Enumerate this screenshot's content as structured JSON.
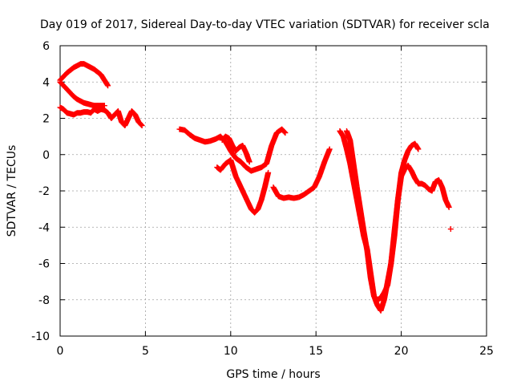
{
  "chart_data": {
    "type": "scatter",
    "title": "Day 019 of 2017, Sidereal Day-to-day VTEC variation (SDTVAR) for receiver scla",
    "xlabel": "GPS time / hours",
    "ylabel": "SDTVAR / TECUs",
    "xlim": [
      0,
      25
    ],
    "ylim": [
      -10,
      6
    ],
    "xticks": [
      0,
      5,
      10,
      15,
      20,
      25
    ],
    "yticks": [
      -10,
      -8,
      -6,
      -4,
      -2,
      0,
      2,
      4,
      6
    ],
    "grid": true,
    "marker": "plus",
    "color": "#ff0000",
    "series": [
      {
        "x": [
          0.0,
          0.2,
          0.4,
          0.6,
          0.8,
          1.0,
          1.2,
          1.4,
          1.6,
          1.8,
          2.0,
          2.2,
          2.4,
          2.6,
          2.8
        ],
        "values": [
          4.1,
          4.3,
          4.5,
          4.65,
          4.8,
          4.9,
          5.0,
          5.0,
          4.9,
          4.8,
          4.7,
          4.55,
          4.4,
          4.1,
          3.8
        ]
      },
      {
        "x": [
          0.0,
          0.2,
          0.4,
          0.6,
          0.8,
          1.0,
          1.2,
          1.4,
          1.6,
          1.8,
          2.0,
          2.2,
          2.4,
          2.6,
          2.8,
          3.0,
          3.2,
          3.4,
          3.6,
          3.8,
          4.0,
          4.2,
          4.4,
          4.6,
          4.8
        ],
        "values": [
          2.6,
          2.5,
          2.3,
          2.25,
          2.2,
          2.3,
          2.3,
          2.35,
          2.35,
          2.3,
          2.5,
          2.4,
          2.5,
          2.45,
          2.3,
          2.0,
          2.2,
          2.4,
          1.8,
          1.6,
          2.0,
          2.4,
          2.2,
          1.8,
          1.6
        ]
      },
      {
        "x": [
          0.0,
          0.2,
          0.4,
          0.6,
          0.8,
          1.0,
          1.2,
          1.4,
          1.6,
          1.8,
          2.0,
          2.2,
          2.4,
          2.6
        ],
        "values": [
          4.0,
          3.8,
          3.6,
          3.4,
          3.2,
          3.05,
          2.95,
          2.85,
          2.8,
          2.75,
          2.7,
          2.7,
          2.7,
          2.7
        ]
      },
      {
        "x": [
          7.0,
          7.3,
          7.6,
          7.9,
          8.2,
          8.5,
          8.8,
          9.1,
          9.4,
          9.7,
          10.0,
          10.3,
          10.6,
          10.9,
          11.2,
          11.5,
          11.8,
          12.1,
          12.4,
          12.7,
          13.0,
          13.2
        ],
        "values": [
          1.4,
          1.35,
          1.1,
          0.9,
          0.8,
          0.7,
          0.75,
          0.85,
          1.0,
          0.7,
          0.2,
          -0.2,
          -0.4,
          -0.7,
          -0.9,
          -0.8,
          -0.7,
          -0.5,
          0.5,
          1.2,
          1.4,
          1.2
        ]
      },
      {
        "x": [
          9.2,
          9.4,
          9.7,
          10.0,
          10.3,
          10.6,
          10.9,
          11.2,
          11.4,
          11.6,
          11.8,
          12.0,
          12.2
        ],
        "values": [
          -0.7,
          -0.85,
          -0.5,
          -0.3,
          -1.2,
          -1.8,
          -2.4,
          -3.0,
          -3.2,
          -3.0,
          -2.5,
          -1.8,
          -1.0
        ]
      },
      {
        "x": [
          9.5,
          9.7,
          9.9,
          10.1,
          10.3,
          10.5,
          10.7,
          10.9,
          11.1
        ],
        "values": [
          0.8,
          1.0,
          0.9,
          0.5,
          0.2,
          0.4,
          0.5,
          0.1,
          -0.4
        ]
      },
      {
        "x": [
          12.5,
          12.8,
          13.1,
          13.4,
          13.7,
          14.0,
          14.3,
          14.6,
          14.9,
          15.2,
          15.5,
          15.8
        ],
        "values": [
          -1.8,
          -2.3,
          -2.4,
          -2.35,
          -2.4,
          -2.35,
          -2.2,
          -2.0,
          -1.8,
          -1.2,
          -0.4,
          0.3
        ]
      },
      {
        "x": [
          16.4,
          16.6,
          16.8,
          17.0,
          17.2,
          17.4,
          17.6,
          17.8,
          18.0,
          18.2,
          18.4,
          18.6,
          18.8,
          19.0,
          19.2,
          19.4,
          19.6,
          19.8,
          20.0,
          20.2,
          20.4,
          20.6,
          20.8,
          21.0
        ],
        "values": [
          1.3,
          1.0,
          0.3,
          -0.5,
          -1.5,
          -2.5,
          -3.5,
          -4.5,
          -5.2,
          -6.5,
          -7.8,
          -8.3,
          -8.6,
          -8.0,
          -7.0,
          -6.0,
          -4.5,
          -2.5,
          -1.0,
          -0.3,
          0.2,
          0.5,
          0.6,
          0.3
        ]
      },
      {
        "x": [
          16.8,
          17.0,
          17.2,
          17.4,
          17.6,
          17.8,
          18.0,
          18.2,
          18.4,
          18.6,
          18.8,
          19.0,
          19.2,
          19.4,
          19.6,
          19.8,
          20.0,
          20.2,
          20.4,
          20.6,
          20.8,
          21.0,
          21.2,
          21.4,
          21.6,
          21.8,
          22.0,
          22.2,
          22.4,
          22.6,
          22.8
        ],
        "values": [
          1.3,
          0.8,
          -0.5,
          -1.8,
          -3.0,
          -4.2,
          -5.3,
          -6.8,
          -7.8,
          -8.0,
          -7.9,
          -7.6,
          -7.2,
          -6.0,
          -4.2,
          -2.5,
          -1.2,
          -0.8,
          -0.6,
          -0.9,
          -1.3,
          -1.6,
          -1.6,
          -1.7,
          -1.9,
          -2.0,
          -1.5,
          -1.4,
          -1.8,
          -2.5,
          -2.9
        ]
      },
      {
        "x": [
          22.9
        ],
        "values": [
          -4.1
        ]
      }
    ]
  }
}
